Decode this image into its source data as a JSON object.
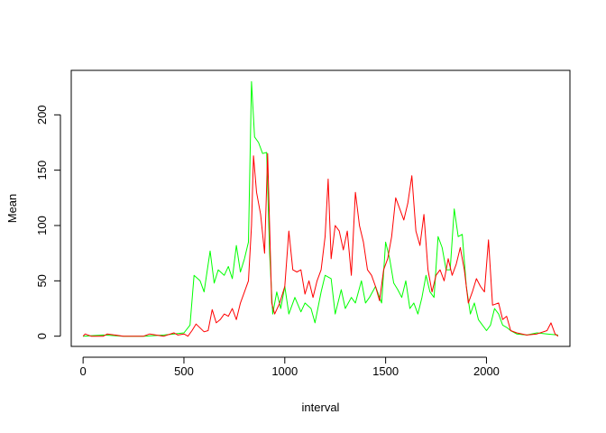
{
  "chart_data": {
    "type": "line",
    "title": "",
    "xlabel": "interval",
    "ylabel": "Mean",
    "xlim": [
      -58.75,
      2413.75
    ],
    "ylim": [
      -9.24,
      240.19
    ],
    "x_ticks": [
      0,
      500,
      1000,
      1500,
      2000
    ],
    "y_ticks": [
      0,
      50,
      100,
      150,
      200
    ],
    "grid": false,
    "legend": "none",
    "series": [
      {
        "color": "#00FF00",
        "points": [
          [
            0,
            0
          ],
          [
            100,
            1
          ],
          [
            200,
            0
          ],
          [
            300,
            0
          ],
          [
            400,
            1
          ],
          [
            450,
            2
          ],
          [
            500,
            3
          ],
          [
            530,
            10
          ],
          [
            550,
            55
          ],
          [
            580,
            50
          ],
          [
            600,
            40
          ],
          [
            630,
            77
          ],
          [
            650,
            48
          ],
          [
            670,
            60
          ],
          [
            700,
            55
          ],
          [
            720,
            63
          ],
          [
            740,
            52
          ],
          [
            760,
            82
          ],
          [
            780,
            58
          ],
          [
            800,
            70
          ],
          [
            820,
            85
          ],
          [
            835,
            230
          ],
          [
            850,
            180
          ],
          [
            870,
            175
          ],
          [
            890,
            165
          ],
          [
            910,
            166
          ],
          [
            925,
            75
          ],
          [
            940,
            20
          ],
          [
            960,
            40
          ],
          [
            980,
            25
          ],
          [
            1000,
            45
          ],
          [
            1020,
            20
          ],
          [
            1050,
            35
          ],
          [
            1080,
            22
          ],
          [
            1100,
            30
          ],
          [
            1130,
            25
          ],
          [
            1150,
            12
          ],
          [
            1180,
            40
          ],
          [
            1200,
            55
          ],
          [
            1230,
            52
          ],
          [
            1250,
            20
          ],
          [
            1280,
            42
          ],
          [
            1300,
            25
          ],
          [
            1330,
            35
          ],
          [
            1350,
            30
          ],
          [
            1380,
            50
          ],
          [
            1400,
            30
          ],
          [
            1420,
            35
          ],
          [
            1450,
            45
          ],
          [
            1480,
            30
          ],
          [
            1500,
            85
          ],
          [
            1520,
            70
          ],
          [
            1540,
            48
          ],
          [
            1560,
            42
          ],
          [
            1580,
            35
          ],
          [
            1600,
            50
          ],
          [
            1620,
            25
          ],
          [
            1640,
            30
          ],
          [
            1660,
            20
          ],
          [
            1680,
            35
          ],
          [
            1700,
            55
          ],
          [
            1720,
            40
          ],
          [
            1740,
            35
          ],
          [
            1760,
            90
          ],
          [
            1780,
            80
          ],
          [
            1800,
            60
          ],
          [
            1820,
            60
          ],
          [
            1840,
            115
          ],
          [
            1860,
            90
          ],
          [
            1880,
            92
          ],
          [
            1900,
            45
          ],
          [
            1920,
            20
          ],
          [
            1940,
            30
          ],
          [
            1960,
            15
          ],
          [
            1980,
            10
          ],
          [
            2000,
            5
          ],
          [
            2020,
            10
          ],
          [
            2040,
            25
          ],
          [
            2060,
            20
          ],
          [
            2080,
            10
          ],
          [
            2100,
            8
          ],
          [
            2120,
            5
          ],
          [
            2150,
            2
          ],
          [
            2200,
            1
          ],
          [
            2250,
            3
          ],
          [
            2300,
            2
          ],
          [
            2355,
            1
          ]
        ]
      },
      {
        "color": "#FF0000",
        "points": [
          [
            0,
            0
          ],
          [
            10,
            2
          ],
          [
            40,
            0
          ],
          [
            100,
            0
          ],
          [
            120,
            2
          ],
          [
            200,
            0
          ],
          [
            300,
            0
          ],
          [
            330,
            2
          ],
          [
            400,
            0
          ],
          [
            450,
            3
          ],
          [
            470,
            1
          ],
          [
            500,
            2
          ],
          [
            520,
            0
          ],
          [
            540,
            5
          ],
          [
            560,
            11
          ],
          [
            600,
            4
          ],
          [
            620,
            5
          ],
          [
            640,
            24
          ],
          [
            660,
            12
          ],
          [
            680,
            15
          ],
          [
            700,
            20
          ],
          [
            720,
            18
          ],
          [
            740,
            25
          ],
          [
            760,
            15
          ],
          [
            780,
            30
          ],
          [
            800,
            40
          ],
          [
            820,
            50
          ],
          [
            835,
            100
          ],
          [
            845,
            163
          ],
          [
            860,
            130
          ],
          [
            880,
            110
          ],
          [
            900,
            75
          ],
          [
            915,
            165
          ],
          [
            935,
            30
          ],
          [
            950,
            20
          ],
          [
            975,
            30
          ],
          [
            1000,
            45
          ],
          [
            1020,
            95
          ],
          [
            1040,
            60
          ],
          [
            1060,
            58
          ],
          [
            1080,
            60
          ],
          [
            1100,
            38
          ],
          [
            1120,
            50
          ],
          [
            1140,
            35
          ],
          [
            1160,
            50
          ],
          [
            1180,
            60
          ],
          [
            1200,
            90
          ],
          [
            1215,
            142
          ],
          [
            1230,
            70
          ],
          [
            1250,
            100
          ],
          [
            1270,
            95
          ],
          [
            1290,
            78
          ],
          [
            1310,
            95
          ],
          [
            1330,
            55
          ],
          [
            1350,
            130
          ],
          [
            1370,
            100
          ],
          [
            1390,
            85
          ],
          [
            1410,
            60
          ],
          [
            1430,
            55
          ],
          [
            1450,
            45
          ],
          [
            1470,
            32
          ],
          [
            1490,
            60
          ],
          [
            1510,
            70
          ],
          [
            1530,
            90
          ],
          [
            1550,
            125
          ],
          [
            1570,
            115
          ],
          [
            1590,
            105
          ],
          [
            1610,
            120
          ],
          [
            1630,
            145
          ],
          [
            1650,
            95
          ],
          [
            1670,
            82
          ],
          [
            1690,
            110
          ],
          [
            1710,
            60
          ],
          [
            1730,
            40
          ],
          [
            1750,
            55
          ],
          [
            1770,
            60
          ],
          [
            1790,
            50
          ],
          [
            1810,
            70
          ],
          [
            1830,
            55
          ],
          [
            1850,
            65
          ],
          [
            1870,
            80
          ],
          [
            1890,
            60
          ],
          [
            1910,
            30
          ],
          [
            1930,
            40
          ],
          [
            1950,
            52
          ],
          [
            1970,
            45
          ],
          [
            1990,
            40
          ],
          [
            2010,
            87
          ],
          [
            2030,
            28
          ],
          [
            2060,
            30
          ],
          [
            2080,
            15
          ],
          [
            2100,
            18
          ],
          [
            2120,
            5
          ],
          [
            2150,
            3
          ],
          [
            2200,
            1
          ],
          [
            2250,
            2
          ],
          [
            2300,
            5
          ],
          [
            2320,
            12
          ],
          [
            2340,
            2
          ],
          [
            2355,
            0
          ]
        ]
      }
    ]
  }
}
